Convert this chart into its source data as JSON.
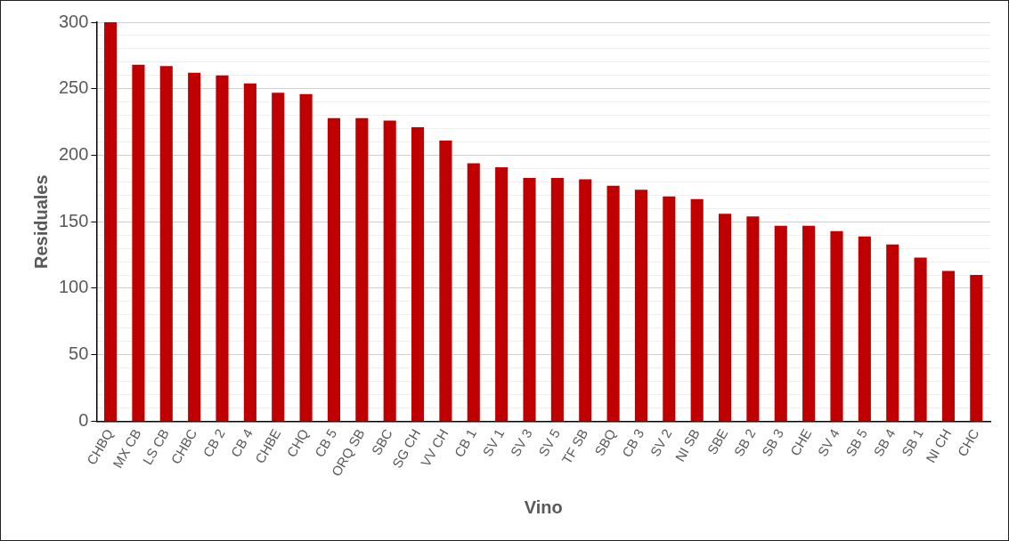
{
  "chart_data": {
    "type": "bar",
    "xlabel": "Vino",
    "ylabel": "Residuales",
    "categories": [
      "CHBQ",
      "MX CB",
      "LS CB",
      "CHBC",
      "CB 2",
      "CB 4",
      "CHBE",
      "CHQ",
      "CB 5",
      "ORQ SB",
      "SBC",
      "SG CH",
      "VV CH",
      "CB 1",
      "SV 1",
      "SV 3",
      "SV 5",
      "TF SB",
      "SBQ",
      "CB 3",
      "SV 2",
      "NI SB",
      "SBE",
      "SB 2",
      "SB 3",
      "CHE",
      "SV 4",
      "SB 5",
      "SB 4",
      "SB 1",
      "NI CH",
      "CHC"
    ],
    "values": [
      300,
      268,
      267,
      262,
      260,
      254,
      247,
      246,
      228,
      228,
      226,
      221,
      211,
      194,
      191,
      183,
      183,
      182,
      177,
      174,
      169,
      167,
      156,
      154,
      147,
      147,
      143,
      139,
      133,
      123,
      113,
      110
    ],
    "color": "#c00000",
    "ylim": [
      0,
      300
    ],
    "yticks": [
      0,
      {
        "value": 10,
        "label": null
      },
      {
        "value": 20,
        "label": null
      },
      {
        "value": 30,
        "label": null
      },
      {
        "value": 40,
        "label": null
      },
      50,
      {
        "value": 60,
        "label": null
      },
      {
        "value": 70,
        "label": null
      },
      {
        "value": 80,
        "label": null
      },
      {
        "value": 90,
        "label": null
      },
      100,
      {
        "value": 110,
        "label": null
      },
      {
        "value": 120,
        "label": null
      },
      {
        "value": 130,
        "label": null
      },
      {
        "value": 140,
        "label": null
      },
      150,
      {
        "value": 160,
        "label": null
      },
      {
        "value": 170,
        "label": null
      },
      {
        "value": 180,
        "label": null
      },
      {
        "value": 190,
        "label": null
      },
      200,
      {
        "value": 210,
        "label": null
      },
      {
        "value": 220,
        "label": null
      },
      {
        "value": 230,
        "label": null
      },
      {
        "value": 240,
        "label": null
      },
      250,
      {
        "value": 260,
        "label": null
      },
      {
        "value": 270,
        "label": null
      },
      {
        "value": 280,
        "label": null
      },
      {
        "value": 290,
        "label": null
      },
      300
    ],
    "grid": "y",
    "legend": false
  }
}
